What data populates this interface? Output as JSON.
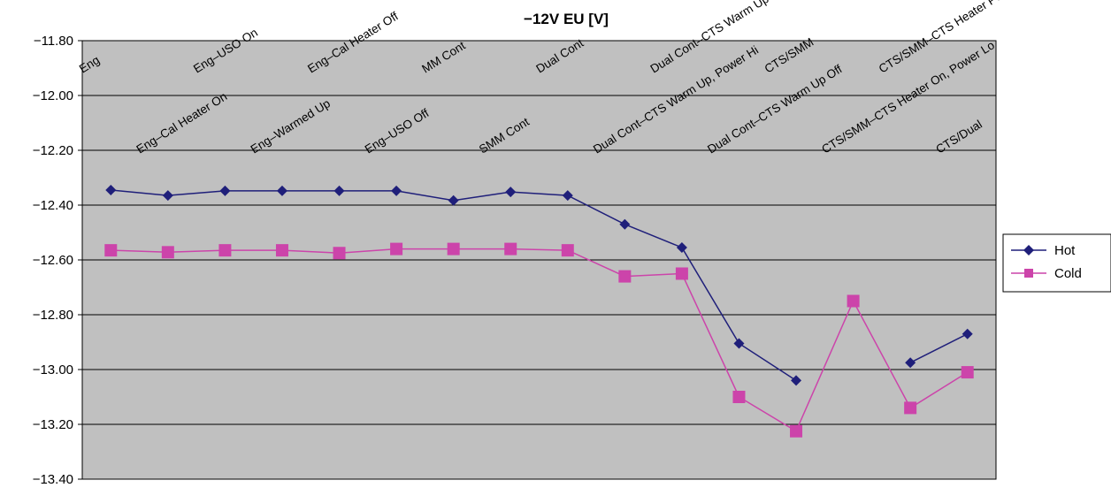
{
  "chart_data": {
    "type": "line",
    "title": "−12V EU [V]",
    "xlabel": "",
    "ylabel": "",
    "ylim": [
      -13.4,
      -11.8
    ],
    "yticks": [
      "−11.80",
      "−12.00",
      "−12.20",
      "−12.40",
      "−12.60",
      "−12.80",
      "−13.00",
      "−13.20",
      "−13.40"
    ],
    "grid": true,
    "legend_position": "right",
    "categories": [
      "Eng",
      "Eng–Cal Heater On",
      "Eng–USO On",
      "Eng–Warmed Up",
      "Eng–Cal Heater Off",
      "Eng–USO Off",
      "MM Cont",
      "SMM Cont",
      "Dual Cont",
      "Dual Cont–CTS Warm Up, Power Hi",
      "Dual Cont–CTS Warm Up Power Lo",
      "Dual Cont–CTS Warm Up Off",
      "CTS/SMM",
      "CTS/SMM–CTS Heater On, Power Lo",
      "CTS/SMM–CTS Heater Power Lo, Finished",
      "CTS/Dual"
    ],
    "series": [
      {
        "name": "Hot",
        "color": "#1f1f7a",
        "marker": "diamond",
        "values": [
          -12.345,
          -12.365,
          -12.348,
          -12.348,
          -12.348,
          -12.348,
          -12.383,
          -12.352,
          -12.365,
          -12.47,
          -12.555,
          -12.905,
          -13.04,
          null,
          -12.975,
          -12.87
        ]
      },
      {
        "name": "Cold",
        "color": "#cc44aa",
        "marker": "square",
        "values": [
          -12.565,
          -12.572,
          -12.565,
          -12.565,
          -12.575,
          -12.56,
          -12.56,
          -12.56,
          -12.565,
          -12.66,
          -12.65,
          -13.1,
          -13.225,
          -12.75,
          -13.14,
          -13.01
        ]
      }
    ]
  }
}
